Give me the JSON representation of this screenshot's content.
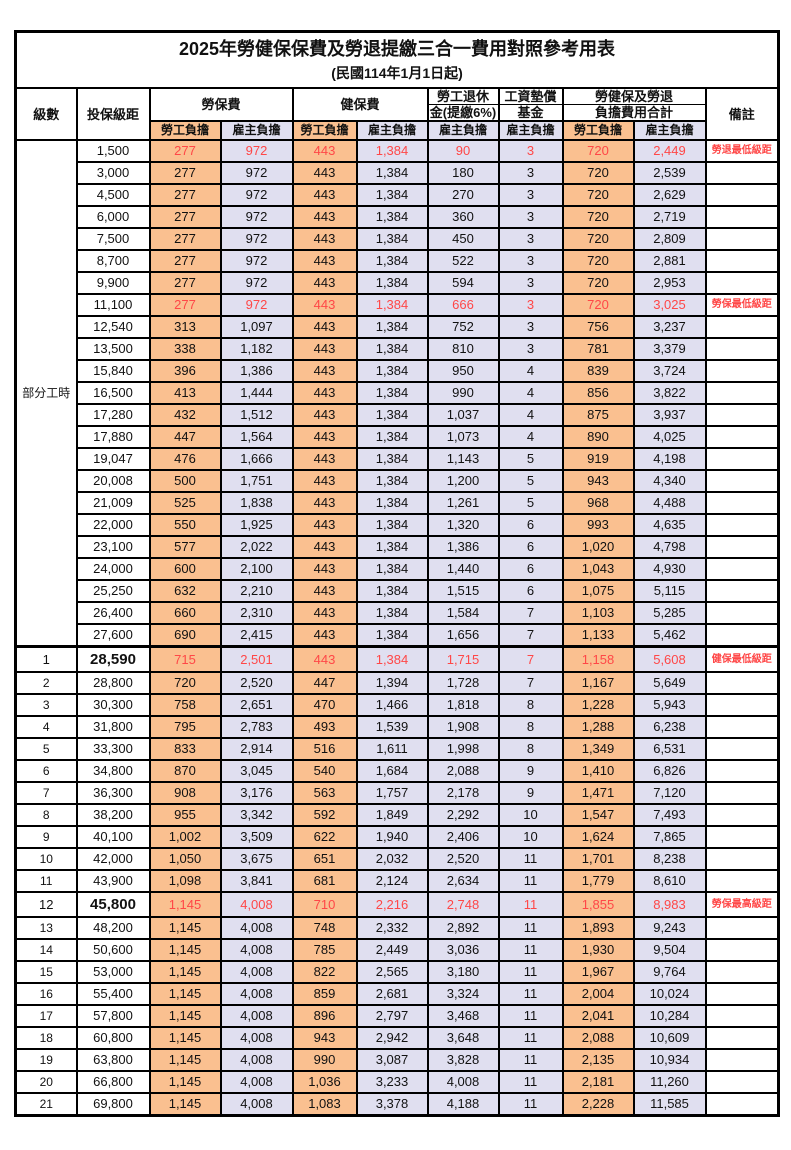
{
  "page": {
    "title": "2025年勞健保保費及勞退提繳三合一費用對照參考用表",
    "subtitle": "(民國114年1月1日起)"
  },
  "colors": {
    "employee_bg": "#FAC090",
    "employer_bg": "#E0DFF0",
    "highlight_text": "#FF4747",
    "border": "#000000"
  },
  "header": {
    "grade": "級數",
    "bracket": "投保級距",
    "labor": "勞保費",
    "health": "健保費",
    "pension_line1": "勞工退休",
    "pension_line2": "金(提繳6%)",
    "fund_line1": "工資墊償",
    "fund_line2": "基金",
    "total_line1": "勞健保及勞退",
    "total_line2": "負擔費用合計",
    "note": "備註",
    "employee_share": "勞工負擔",
    "employer_share": "雇主負擔"
  },
  "part_time": {
    "label": "部分工時",
    "row_span": 23
  },
  "rows": [
    {
      "grade": "",
      "bracket": "1,500",
      "values": [
        "277",
        "972",
        "443",
        "1,384",
        "90",
        "3",
        "720",
        "2,449"
      ],
      "note": "勞退最低級距",
      "red": true,
      "big": false,
      "section_start": false
    },
    {
      "grade": "",
      "bracket": "3,000",
      "values": [
        "277",
        "972",
        "443",
        "1,384",
        "180",
        "3",
        "720",
        "2,539"
      ],
      "note": "",
      "red": false,
      "big": false,
      "section_start": false
    },
    {
      "grade": "",
      "bracket": "4,500",
      "values": [
        "277",
        "972",
        "443",
        "1,384",
        "270",
        "3",
        "720",
        "2,629"
      ],
      "note": "",
      "red": false,
      "big": false,
      "section_start": false
    },
    {
      "grade": "",
      "bracket": "6,000",
      "values": [
        "277",
        "972",
        "443",
        "1,384",
        "360",
        "3",
        "720",
        "2,719"
      ],
      "note": "",
      "red": false,
      "big": false,
      "section_start": false
    },
    {
      "grade": "",
      "bracket": "7,500",
      "values": [
        "277",
        "972",
        "443",
        "1,384",
        "450",
        "3",
        "720",
        "2,809"
      ],
      "note": "",
      "red": false,
      "big": false,
      "section_start": false
    },
    {
      "grade": "",
      "bracket": "8,700",
      "values": [
        "277",
        "972",
        "443",
        "1,384",
        "522",
        "3",
        "720",
        "2,881"
      ],
      "note": "",
      "red": false,
      "big": false,
      "section_start": false
    },
    {
      "grade": "",
      "bracket": "9,900",
      "values": [
        "277",
        "972",
        "443",
        "1,384",
        "594",
        "3",
        "720",
        "2,953"
      ],
      "note": "",
      "red": false,
      "big": false,
      "section_start": false
    },
    {
      "grade": "",
      "bracket": "11,100",
      "values": [
        "277",
        "972",
        "443",
        "1,384",
        "666",
        "3",
        "720",
        "3,025"
      ],
      "note": "勞保最低級距",
      "red": true,
      "big": false,
      "section_start": false
    },
    {
      "grade": "",
      "bracket": "12,540",
      "values": [
        "313",
        "1,097",
        "443",
        "1,384",
        "752",
        "3",
        "756",
        "3,237"
      ],
      "note": "",
      "red": false,
      "big": false,
      "section_start": false
    },
    {
      "grade": "",
      "bracket": "13,500",
      "values": [
        "338",
        "1,182",
        "443",
        "1,384",
        "810",
        "3",
        "781",
        "3,379"
      ],
      "note": "",
      "red": false,
      "big": false,
      "section_start": false
    },
    {
      "grade": "",
      "bracket": "15,840",
      "values": [
        "396",
        "1,386",
        "443",
        "1,384",
        "950",
        "4",
        "839",
        "3,724"
      ],
      "note": "",
      "red": false,
      "big": false,
      "section_start": false
    },
    {
      "grade": "",
      "bracket": "16,500",
      "values": [
        "413",
        "1,444",
        "443",
        "1,384",
        "990",
        "4",
        "856",
        "3,822"
      ],
      "note": "",
      "red": false,
      "big": false,
      "section_start": false
    },
    {
      "grade": "",
      "bracket": "17,280",
      "values": [
        "432",
        "1,512",
        "443",
        "1,384",
        "1,037",
        "4",
        "875",
        "3,937"
      ],
      "note": "",
      "red": false,
      "big": false,
      "section_start": false
    },
    {
      "grade": "",
      "bracket": "17,880",
      "values": [
        "447",
        "1,564",
        "443",
        "1,384",
        "1,073",
        "4",
        "890",
        "4,025"
      ],
      "note": "",
      "red": false,
      "big": false,
      "section_start": false
    },
    {
      "grade": "",
      "bracket": "19,047",
      "values": [
        "476",
        "1,666",
        "443",
        "1,384",
        "1,143",
        "5",
        "919",
        "4,198"
      ],
      "note": "",
      "red": false,
      "big": false,
      "section_start": false
    },
    {
      "grade": "",
      "bracket": "20,008",
      "values": [
        "500",
        "1,751",
        "443",
        "1,384",
        "1,200",
        "5",
        "943",
        "4,340"
      ],
      "note": "",
      "red": false,
      "big": false,
      "section_start": false
    },
    {
      "grade": "",
      "bracket": "21,009",
      "values": [
        "525",
        "1,838",
        "443",
        "1,384",
        "1,261",
        "5",
        "968",
        "4,488"
      ],
      "note": "",
      "red": false,
      "big": false,
      "section_start": false
    },
    {
      "grade": "",
      "bracket": "22,000",
      "values": [
        "550",
        "1,925",
        "443",
        "1,384",
        "1,320",
        "6",
        "993",
        "4,635"
      ],
      "note": "",
      "red": false,
      "big": false,
      "section_start": false
    },
    {
      "grade": "",
      "bracket": "23,100",
      "values": [
        "577",
        "2,022",
        "443",
        "1,384",
        "1,386",
        "6",
        "1,020",
        "4,798"
      ],
      "note": "",
      "red": false,
      "big": false,
      "section_start": false
    },
    {
      "grade": "",
      "bracket": "24,000",
      "values": [
        "600",
        "2,100",
        "443",
        "1,384",
        "1,440",
        "6",
        "1,043",
        "4,930"
      ],
      "note": "",
      "red": false,
      "big": false,
      "section_start": false
    },
    {
      "grade": "",
      "bracket": "25,250",
      "values": [
        "632",
        "2,210",
        "443",
        "1,384",
        "1,515",
        "6",
        "1,075",
        "5,115"
      ],
      "note": "",
      "red": false,
      "big": false,
      "section_start": false
    },
    {
      "grade": "",
      "bracket": "26,400",
      "values": [
        "660",
        "2,310",
        "443",
        "1,384",
        "1,584",
        "7",
        "1,103",
        "5,285"
      ],
      "note": "",
      "red": false,
      "big": false,
      "section_start": false
    },
    {
      "grade": "",
      "bracket": "27,600",
      "values": [
        "690",
        "2,415",
        "443",
        "1,384",
        "1,656",
        "7",
        "1,133",
        "5,462"
      ],
      "note": "",
      "red": false,
      "big": false,
      "section_start": false
    },
    {
      "grade": "1",
      "bracket": "28,590",
      "values": [
        "715",
        "2,501",
        "443",
        "1,384",
        "1,715",
        "7",
        "1,158",
        "5,608"
      ],
      "note": "健保最低級距",
      "red": true,
      "big": true,
      "section_start": true
    },
    {
      "grade": "2",
      "bracket": "28,800",
      "values": [
        "720",
        "2,520",
        "447",
        "1,394",
        "1,728",
        "7",
        "1,167",
        "5,649"
      ],
      "note": "",
      "red": false,
      "big": false,
      "section_start": false
    },
    {
      "grade": "3",
      "bracket": "30,300",
      "values": [
        "758",
        "2,651",
        "470",
        "1,466",
        "1,818",
        "8",
        "1,228",
        "5,943"
      ],
      "note": "",
      "red": false,
      "big": false,
      "section_start": false
    },
    {
      "grade": "4",
      "bracket": "31,800",
      "values": [
        "795",
        "2,783",
        "493",
        "1,539",
        "1,908",
        "8",
        "1,288",
        "6,238"
      ],
      "note": "",
      "red": false,
      "big": false,
      "section_start": false
    },
    {
      "grade": "5",
      "bracket": "33,300",
      "values": [
        "833",
        "2,914",
        "516",
        "1,611",
        "1,998",
        "8",
        "1,349",
        "6,531"
      ],
      "note": "",
      "red": false,
      "big": false,
      "section_start": false
    },
    {
      "grade": "6",
      "bracket": "34,800",
      "values": [
        "870",
        "3,045",
        "540",
        "1,684",
        "2,088",
        "9",
        "1,410",
        "6,826"
      ],
      "note": "",
      "red": false,
      "big": false,
      "section_start": false
    },
    {
      "grade": "7",
      "bracket": "36,300",
      "values": [
        "908",
        "3,176",
        "563",
        "1,757",
        "2,178",
        "9",
        "1,471",
        "7,120"
      ],
      "note": "",
      "red": false,
      "big": false,
      "section_start": false
    },
    {
      "grade": "8",
      "bracket": "38,200",
      "values": [
        "955",
        "3,342",
        "592",
        "1,849",
        "2,292",
        "10",
        "1,547",
        "7,493"
      ],
      "note": "",
      "red": false,
      "big": false,
      "section_start": false
    },
    {
      "grade": "9",
      "bracket": "40,100",
      "values": [
        "1,002",
        "3,509",
        "622",
        "1,940",
        "2,406",
        "10",
        "1,624",
        "7,865"
      ],
      "note": "",
      "red": false,
      "big": false,
      "section_start": false
    },
    {
      "grade": "10",
      "bracket": "42,000",
      "values": [
        "1,050",
        "3,675",
        "651",
        "2,032",
        "2,520",
        "11",
        "1,701",
        "8,238"
      ],
      "note": "",
      "red": false,
      "big": false,
      "section_start": false
    },
    {
      "grade": "11",
      "bracket": "43,900",
      "values": [
        "1,098",
        "3,841",
        "681",
        "2,124",
        "2,634",
        "11",
        "1,779",
        "8,610"
      ],
      "note": "",
      "red": false,
      "big": false,
      "section_start": false
    },
    {
      "grade": "12",
      "bracket": "45,800",
      "values": [
        "1,145",
        "4,008",
        "710",
        "2,216",
        "2,748",
        "11",
        "1,855",
        "8,983"
      ],
      "note": "勞保最高級距",
      "red": true,
      "big": true,
      "section_start": false
    },
    {
      "grade": "13",
      "bracket": "48,200",
      "values": [
        "1,145",
        "4,008",
        "748",
        "2,332",
        "2,892",
        "11",
        "1,893",
        "9,243"
      ],
      "note": "",
      "red": false,
      "big": false,
      "section_start": false
    },
    {
      "grade": "14",
      "bracket": "50,600",
      "values": [
        "1,145",
        "4,008",
        "785",
        "2,449",
        "3,036",
        "11",
        "1,930",
        "9,504"
      ],
      "note": "",
      "red": false,
      "big": false,
      "section_start": false
    },
    {
      "grade": "15",
      "bracket": "53,000",
      "values": [
        "1,145",
        "4,008",
        "822",
        "2,565",
        "3,180",
        "11",
        "1,967",
        "9,764"
      ],
      "note": "",
      "red": false,
      "big": false,
      "section_start": false
    },
    {
      "grade": "16",
      "bracket": "55,400",
      "values": [
        "1,145",
        "4,008",
        "859",
        "2,681",
        "3,324",
        "11",
        "2,004",
        "10,024"
      ],
      "note": "",
      "red": false,
      "big": false,
      "section_start": false
    },
    {
      "grade": "17",
      "bracket": "57,800",
      "values": [
        "1,145",
        "4,008",
        "896",
        "2,797",
        "3,468",
        "11",
        "2,041",
        "10,284"
      ],
      "note": "",
      "red": false,
      "big": false,
      "section_start": false
    },
    {
      "grade": "18",
      "bracket": "60,800",
      "values": [
        "1,145",
        "4,008",
        "943",
        "2,942",
        "3,648",
        "11",
        "2,088",
        "10,609"
      ],
      "note": "",
      "red": false,
      "big": false,
      "section_start": false
    },
    {
      "grade": "19",
      "bracket": "63,800",
      "values": [
        "1,145",
        "4,008",
        "990",
        "3,087",
        "3,828",
        "11",
        "2,135",
        "10,934"
      ],
      "note": "",
      "red": false,
      "big": false,
      "section_start": false
    },
    {
      "grade": "20",
      "bracket": "66,800",
      "values": [
        "1,145",
        "4,008",
        "1,036",
        "3,233",
        "4,008",
        "11",
        "2,181",
        "11,260"
      ],
      "note": "",
      "red": false,
      "big": false,
      "section_start": false
    },
    {
      "grade": "21",
      "bracket": "69,800",
      "values": [
        "1,145",
        "4,008",
        "1,083",
        "3,378",
        "4,188",
        "11",
        "2,228",
        "11,585"
      ],
      "note": "",
      "red": false,
      "big": false,
      "section_start": false
    }
  ]
}
